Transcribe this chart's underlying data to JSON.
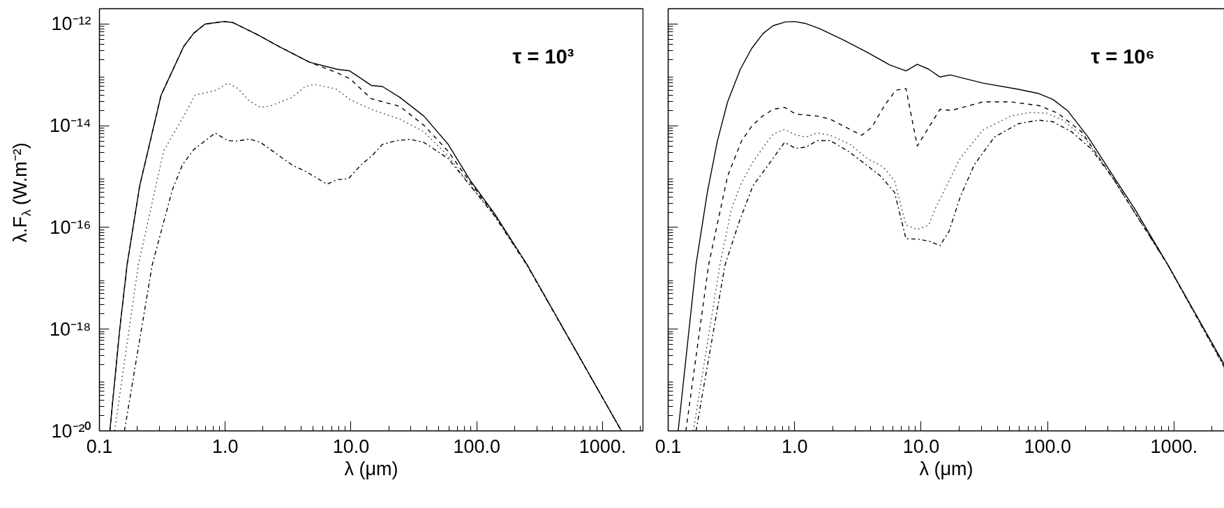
{
  "chart_data": [
    {
      "type": "line",
      "xlabel": "λ (μm)",
      "ylabel": "λ.F$_{λ}$ (W.m⁻²)",
      "log": "xy",
      "xlim": [
        0.1,
        2100
      ],
      "ylim": [
        1e-20,
        2e-12
      ],
      "xticks": [
        {
          "value": 0.1,
          "label": "0.1"
        },
        {
          "value": 1,
          "label": "1.0"
        },
        {
          "value": 10,
          "label": "10.0"
        },
        {
          "value": 100,
          "label": "100.0"
        },
        {
          "value": 1000,
          "label": "1000."
        }
      ],
      "yticks": [
        {
          "value": 1e-20,
          "label": "10⁻²⁰"
        },
        {
          "value": 1e-18,
          "label": "10⁻¹⁸"
        },
        {
          "value": 1e-16,
          "label": "10⁻¹⁶"
        },
        {
          "value": 1e-14,
          "label": "10⁻¹⁴"
        },
        {
          "value": 1e-12,
          "label": "10⁻¹²"
        }
      ],
      "annotations": [
        "τ = 10³"
      ],
      "series": [
        {
          "color": "#000000",
          "line_style": "solid",
          "x": [
            0.121,
            0.145,
            0.166,
            0.209,
            0.309,
            0.468,
            0.562,
            0.692,
            0.977,
            1.15,
            1.78,
            2.69,
            4.68,
            7.76,
            9.77,
            14.5,
            17.8,
            24.5,
            38,
            58.9,
            89.1,
            138,
            251,
            1413
          ],
          "values": [
            1e-20,
            1e-18,
            1.86e-17,
            6.6e-16,
            3.98e-14,
            3.63e-13,
            6.6e-13,
            1e-12,
            1.12e-12,
            1.07e-12,
            6.3e-13,
            3.6e-13,
            1.78e-13,
            1.29e-13,
            1.2e-13,
            6.2e-14,
            5.9e-14,
            3.6e-14,
            1.55e-14,
            4.4e-15,
            8.3e-16,
            1.9e-16,
            1.86e-17,
            1e-20
          ]
        },
        {
          "color": "#000000",
          "line_style": "dashed",
          "x": [
            0.121,
            0.145,
            0.166,
            0.209,
            0.309,
            0.468,
            0.562,
            0.692,
            0.977,
            1.15,
            1.78,
            2.69,
            4.68,
            7.76,
            9.77,
            14.5,
            24.5,
            38,
            58.9,
            89.1,
            138,
            251,
            1413
          ],
          "values": [
            1e-20,
            1e-18,
            1.86e-17,
            6.6e-16,
            3.98e-14,
            3.63e-13,
            6.6e-13,
            1e-12,
            1.12e-12,
            1.07e-12,
            6.3e-13,
            3.6e-13,
            1.78e-13,
            1.1e-13,
            8.5e-14,
            3.4e-14,
            2.4e-14,
            1.02e-14,
            3.2e-15,
            7.6e-16,
            1.8e-16,
            1.86e-17,
            1e-20
          ]
        },
        {
          "color": "#555555",
          "line_style": "dotted",
          "x": [
            0.132,
            0.204,
            0.324,
            0.457,
            0.575,
            0.851,
            1.05,
            1.26,
            1.55,
            1.91,
            2.29,
            3.39,
            4.37,
            5.13,
            7.59,
            9.77,
            14.5,
            24.5,
            38,
            58.9,
            89.1,
            138,
            251,
            1413
          ],
          "values": [
            1e-20,
            1.86e-17,
            3.2e-15,
            1.41e-14,
            3.98e-14,
            5e-14,
            6.9e-14,
            5.4e-14,
            3.1e-14,
            2.3e-14,
            2.45e-14,
            3.6e-14,
            6e-14,
            6.5e-14,
            5.3e-14,
            3.3e-14,
            2.1e-14,
            1.35e-14,
            7.6e-15,
            2.6e-15,
            6.6e-16,
            1.8e-16,
            1.86e-17,
            1e-20
          ]
        },
        {
          "color": "#000000",
          "line_style": "dashdot",
          "x": [
            0.158,
            0.263,
            0.38,
            0.457,
            0.562,
            0.832,
            1.05,
            1.26,
            1.55,
            1.91,
            3.39,
            4.37,
            6.46,
            7.76,
            9.55,
            12.0,
            14.5,
            17.8,
            22.9,
            29.5,
            38,
            58.9,
            89.1,
            138,
            251,
            1413
          ],
          "values": [
            1e-20,
            1.86e-17,
            5.5e-16,
            1.7e-15,
            3.4e-15,
            7.2e-15,
            5.1e-15,
            5e-15,
            5.5e-15,
            4.7e-15,
            1.7e-15,
            1.26e-15,
            7.1e-16,
            8.7e-16,
            9.1e-16,
            1.7e-15,
            2.5e-15,
            4.3e-15,
            5.1e-15,
            5.4e-15,
            4.7e-15,
            2.3e-15,
            6.6e-16,
            1.7e-16,
            1.8e-17,
            1e-20
          ]
        }
      ]
    },
    {
      "type": "line",
      "xlabel": "λ (μm)",
      "log": "xy",
      "xlim": [
        0.1,
        2500
      ],
      "ylim": [
        1e-20,
        2e-12
      ],
      "tick_labels": "x",
      "xticks": [
        {
          "value": 0.1,
          "label": "0.1"
        },
        {
          "value": 1,
          "label": "1.0"
        },
        {
          "value": 10,
          "label": "10.0"
        },
        {
          "value": 100,
          "label": "100.0"
        },
        {
          "value": 1000,
          "label": "1000."
        }
      ],
      "yticks": [
        {
          "value": 1e-20,
          "label": null
        },
        {
          "value": 1e-18,
          "label": null
        },
        {
          "value": 1e-16,
          "label": null
        },
        {
          "value": 1e-14,
          "label": null
        },
        {
          "value": 1e-12,
          "label": null
        }
      ],
      "annotations": [
        "τ = 10⁶"
      ],
      "series": [
        {
          "color": "#000000",
          "line_style": "solid",
          "x": [
            0.12,
            0.166,
            0.204,
            0.245,
            0.295,
            0.372,
            0.457,
            0.562,
            0.676,
            0.851,
            1.0,
            1.23,
            1.58,
            2.45,
            3.72,
            5.62,
            7.59,
            9.33,
            11.5,
            14.1,
            17.0,
            30.9,
            58.9,
            85.1,
            110,
            145,
            209,
            331,
            490,
            891,
            2500
          ],
          "values": [
            1e-20,
            1.86e-17,
            4.9e-16,
            5e-15,
            2.95e-14,
            1.29e-13,
            3.3e-13,
            6.5e-13,
            9.3e-13,
            1.1e-12,
            1.12e-12,
            1.02e-12,
            8.1e-13,
            4.8e-13,
            2.8e-13,
            1.58e-13,
            1.2e-13,
            1.62e-13,
            1.29e-13,
            9.1e-14,
            1e-13,
            6.9e-14,
            5.2e-14,
            4.3e-14,
            3.3e-14,
            1.95e-14,
            6e-15,
            1.02e-15,
            2.3e-16,
            1.86e-17,
            2e-19
          ]
        },
        {
          "color": "#000000",
          "line_style": "dashed",
          "x": [
            0.138,
            0.209,
            0.295,
            0.38,
            0.457,
            0.55,
            0.676,
            0.832,
            1.02,
            1.23,
            1.51,
            1.91,
            2.45,
            3.39,
            4.07,
            5.13,
            6.31,
            7.59,
            9.33,
            11.5,
            14.1,
            17.4,
            30.9,
            51.3,
            85.1,
            120,
            186,
            331,
            891,
            2500
          ],
          "values": [
            1e-20,
            1.86e-17,
            1.02e-15,
            5e-15,
            9.8e-15,
            1.51e-14,
            2.1e-14,
            2.3e-14,
            1.7e-14,
            1.62e-14,
            1.55e-14,
            1.35e-14,
            9.8e-15,
            6.5e-15,
            9.3e-15,
            2.5e-14,
            5e-14,
            5.4e-14,
            4e-15,
            9.3e-15,
            2.1e-14,
            2e-14,
            2.95e-14,
            2.95e-14,
            2.5e-14,
            1.78e-14,
            7.6e-15,
            9.1e-16,
            1.86e-17,
            1.9e-19
          ]
        },
        {
          "color": "#555555",
          "line_style": "dotted",
          "x": [
            0.158,
            0.257,
            0.316,
            0.38,
            0.468,
            0.575,
            0.676,
            0.832,
            1.02,
            1.23,
            1.51,
            1.91,
            2.75,
            3.72,
            5.01,
            6.17,
            7.59,
            9.33,
            11.5,
            13.2,
            20.4,
            30.9,
            51.3,
            72.4,
            97.7,
            132,
            200,
            331,
            891,
            2500
          ],
          "values": [
            1e-20,
            1.86e-17,
            2.3e-16,
            7.6e-16,
            1.95e-15,
            4e-15,
            6.9e-15,
            8.5e-15,
            6.6e-15,
            6e-15,
            7.2e-15,
            6.5e-15,
            4.3e-15,
            2.3e-15,
            1.55e-15,
            8.3e-16,
            1.12e-16,
            9.1e-17,
            1.12e-16,
            2.6e-16,
            2.3e-15,
            8.3e-15,
            1.55e-14,
            1.82e-14,
            1.78e-14,
            1.29e-14,
            5.5e-15,
            9.1e-16,
            1.86e-17,
            1.86e-19
          ]
        },
        {
          "color": "#000000",
          "line_style": "dashdot",
          "x": [
            0.166,
            0.282,
            0.363,
            0.468,
            0.603,
            0.832,
            1.02,
            1.23,
            1.51,
            1.91,
            2.63,
            3.39,
            4.79,
            6.17,
            7.59,
            9.33,
            11.5,
            14.1,
            16.6,
            20.4,
            26.3,
            38.0,
            58.9,
            85.1,
            110,
            155,
            219,
            331,
            891,
            2500
          ],
          "values": [
            1e-20,
            1.86e-17,
            1.26e-16,
            6.6e-16,
            1.55e-15,
            4.7e-15,
            3.6e-15,
            3.8e-15,
            5.1e-15,
            5.1e-15,
            3.2e-15,
            2e-15,
            1.02e-15,
            4.9e-16,
            6e-17,
            5.9e-17,
            5.4e-17,
            4.4e-17,
            8.3e-17,
            4e-16,
            1.7e-15,
            6e-15,
            1.1e-14,
            1.29e-14,
            1.2e-14,
            7.6e-15,
            3.6e-15,
            9.1e-16,
            1.86e-17,
            1.78e-19
          ]
        }
      ]
    }
  ]
}
